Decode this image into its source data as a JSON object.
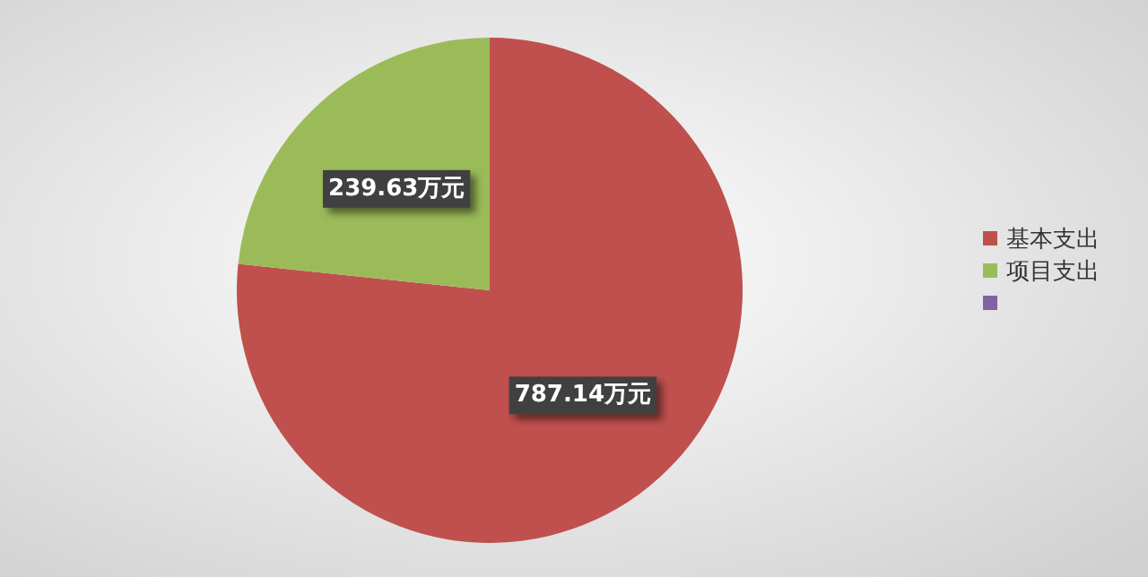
{
  "chart_data": {
    "type": "pie",
    "categories": [
      "基本支出",
      "项目支出",
      null
    ],
    "values": [
      787.14,
      239.63,
      0
    ],
    "colors": [
      "#c0504d",
      "#9bbb59",
      "#8064a2"
    ],
    "value_labels": [
      "787.14万元",
      "239.63万元",
      null
    ],
    "legend": "right"
  }
}
